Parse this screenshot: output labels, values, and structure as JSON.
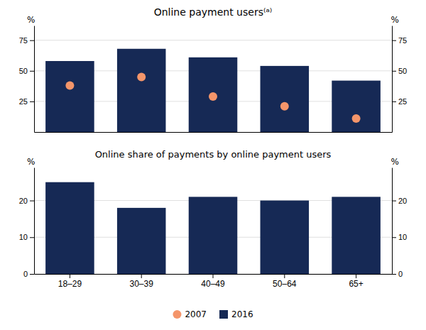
{
  "chart_data": [
    {
      "type": "bar",
      "title": "Online payment users⁽ᵃ⁾",
      "categories": [
        null,
        null,
        null,
        null,
        null
      ],
      "series": [
        {
          "name": "2016",
          "type": "bar",
          "color": "#162955",
          "values": [
            58,
            68,
            61,
            54,
            42
          ]
        },
        {
          "name": "2007",
          "type": "scatter",
          "color": "#f4956a",
          "marker": "circle",
          "values": [
            38,
            45,
            29,
            21,
            11
          ]
        }
      ],
      "ylim": [
        0,
        87
      ],
      "yticks": [
        25,
        50,
        75
      ],
      "y2lim": [
        0,
        87
      ],
      "y2ticks": [
        25,
        50,
        75
      ],
      "ylabel": "%",
      "y2label": "%",
      "grid": true,
      "legend": "bottom",
      "tick_labels": "y"
    },
    {
      "type": "bar",
      "title": "Online share of payments by online payment users",
      "categories": [
        "18–29",
        "30–39",
        "40–49",
        "50–64",
        "65+"
      ],
      "values": [
        25,
        18,
        21,
        20,
        21
      ],
      "color": "#162955",
      "ylim": [
        0,
        29
      ],
      "yticks": [
        0,
        10,
        20
      ],
      "y2lim": [
        0,
        29
      ],
      "y2ticks": [
        0,
        10,
        20
      ],
      "ylabel": "%",
      "y2label": "%",
      "grid": true
    }
  ]
}
